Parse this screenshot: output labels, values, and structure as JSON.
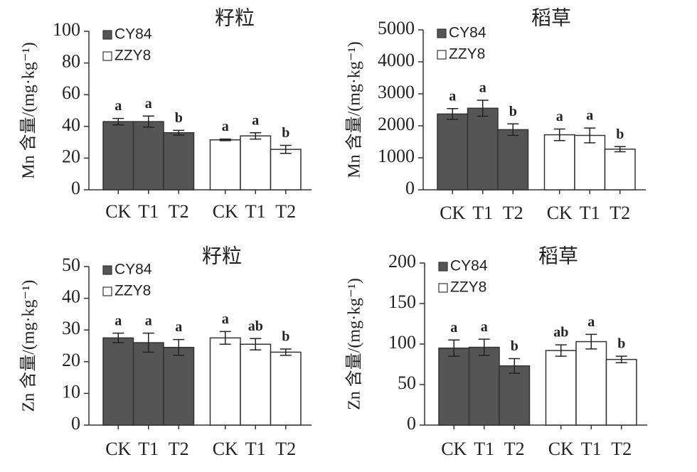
{
  "chart_data": [
    {
      "type": "bar",
      "title": "籽粒",
      "y_label": "Mn 含量/(mg·kg⁻¹)",
      "categories": [
        "CK",
        "T1",
        "T2"
      ],
      "series": [
        {
          "name": "CY84",
          "color": "#555555",
          "values": [
            43,
            43,
            36
          ],
          "errors": [
            2,
            3.5,
            1.5
          ],
          "labels": [
            "a",
            "a",
            "b"
          ]
        },
        {
          "name": "ZZY8",
          "color": "#ffffff",
          "values": [
            31.5,
            34,
            25.5
          ],
          "errors": [
            0.5,
            2,
            2.5
          ],
          "labels": [
            "a",
            "a",
            "b"
          ]
        }
      ],
      "ylim": [
        0,
        100
      ],
      "yticks": [
        0,
        20,
        40,
        60,
        80,
        100
      ]
    },
    {
      "type": "bar",
      "title": "稻草",
      "y_label": "Mn 含量/(mg·kg⁻¹)",
      "categories": [
        "CK",
        "T1",
        "T2"
      ],
      "series": [
        {
          "name": "CY84",
          "color": "#555555",
          "values": [
            2370,
            2550,
            1880
          ],
          "errors": [
            170,
            250,
            180
          ],
          "labels": [
            "a",
            "a",
            "b"
          ]
        },
        {
          "name": "ZZY8",
          "color": "#ffffff",
          "values": [
            1720,
            1700,
            1270
          ],
          "errors": [
            180,
            230,
            80
          ],
          "labels": [
            "a",
            "a",
            "b"
          ]
        }
      ],
      "ylim": [
        0,
        5000
      ],
      "yticks": [
        0,
        1000,
        2000,
        3000,
        4000,
        5000
      ]
    },
    {
      "type": "bar",
      "title": "籽粒",
      "y_label": "Zn 含量/(mg·kg⁻¹)",
      "categories": [
        "CK",
        "T1",
        "T2"
      ],
      "series": [
        {
          "name": "CY84",
          "color": "#555555",
          "values": [
            27.5,
            26,
            24.5
          ],
          "errors": [
            1.5,
            3,
            2.5
          ],
          "labels": [
            "a",
            "a",
            "a"
          ]
        },
        {
          "name": "ZZY8",
          "color": "#ffffff",
          "values": [
            27.5,
            25.5,
            23
          ],
          "errors": [
            2,
            1.8,
            1
          ],
          "labels": [
            "a",
            "ab",
            "b"
          ]
        }
      ],
      "ylim": [
        0,
        50
      ],
      "yticks": [
        0,
        10,
        20,
        30,
        40,
        50
      ]
    },
    {
      "type": "bar",
      "title": "稻草",
      "y_label": "Zn 含量/(mg·kg⁻¹)",
      "categories": [
        "CK",
        "T1",
        "T2"
      ],
      "series": [
        {
          "name": "CY84",
          "color": "#555555",
          "values": [
            95,
            96,
            73
          ],
          "errors": [
            10,
            10,
            9
          ],
          "labels": [
            "a",
            "a",
            "b"
          ]
        },
        {
          "name": "ZZY8",
          "color": "#ffffff",
          "values": [
            92,
            103,
            81
          ],
          "errors": [
            7,
            9,
            4
          ],
          "labels": [
            "ab",
            "a",
            "b"
          ]
        }
      ],
      "ylim": [
        0,
        200
      ],
      "yticks": [
        0,
        50,
        100,
        150,
        200
      ]
    }
  ]
}
